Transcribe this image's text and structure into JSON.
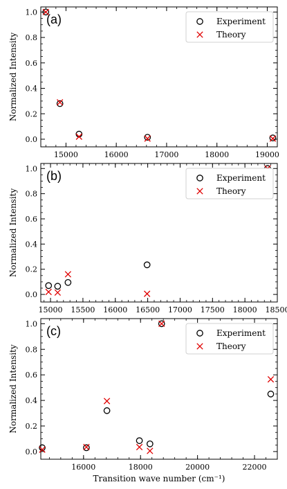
{
  "chart_data": [
    {
      "type": "scatter",
      "panel_label": "(a)",
      "ylabel": "Normalized Intensity",
      "xlabel": "",
      "xlim": [
        14500,
        19200
      ],
      "ylim": [
        -0.06,
        1.04
      ],
      "x_ticks": [
        15000,
        16000,
        17000,
        18000,
        19000
      ],
      "y_ticks": [
        0.0,
        0.2,
        0.4,
        0.6,
        0.8,
        1.0
      ],
      "legend": {
        "placement": "top-right",
        "entries": [
          "Experiment",
          "Theory"
        ]
      },
      "grid": false,
      "series": [
        {
          "name": "Experiment",
          "marker": "circle",
          "color": "#000000",
          "x": [
            14600,
            14880,
            15260,
            16620,
            19110
          ],
          "y": [
            1.0,
            0.28,
            0.04,
            0.015,
            0.01
          ]
        },
        {
          "name": "Theory",
          "marker": "x",
          "color": "#e00000",
          "x": [
            14600,
            14880,
            15260,
            16620,
            19110
          ],
          "y": [
            1.0,
            0.29,
            0.02,
            0.005,
            0.005
          ]
        }
      ]
    },
    {
      "type": "scatter",
      "panel_label": "(b)",
      "ylabel": "Normalized Intensity",
      "xlabel": "",
      "xlim": [
        14850,
        18500
      ],
      "ylim": [
        -0.06,
        1.04
      ],
      "x_ticks": [
        15000,
        15500,
        16000,
        16500,
        17000,
        17500,
        18000,
        18500
      ],
      "y_ticks": [
        0.0,
        0.2,
        0.4,
        0.6,
        0.8,
        1.0
      ],
      "legend": {
        "placement": "top-right",
        "entries": [
          "Experiment",
          "Theory"
        ]
      },
      "grid": false,
      "series": [
        {
          "name": "Experiment",
          "marker": "circle",
          "color": "#000000",
          "x": [
            14970,
            15110,
            15270,
            16490,
            18350
          ],
          "y": [
            0.07,
            0.065,
            0.095,
            0.235,
            1.0
          ]
        },
        {
          "name": "Theory",
          "marker": "x",
          "color": "#e00000",
          "x": [
            14970,
            15110,
            15270,
            16490,
            18350
          ],
          "y": [
            0.02,
            0.015,
            0.16,
            0.005,
            1.0
          ]
        }
      ]
    },
    {
      "type": "scatter",
      "panel_label": "(c)",
      "ylabel": "Normalized Intensity",
      "xlabel": "Transition wave number (cm⁻¹)",
      "xlim": [
        14500,
        22800
      ],
      "ylim": [
        -0.06,
        1.04
      ],
      "x_ticks": [
        16000,
        18000,
        20000,
        22000
      ],
      "y_ticks": [
        0.0,
        0.2,
        0.4,
        0.6,
        0.8,
        1.0
      ],
      "legend": {
        "placement": "top-right",
        "entries": [
          "Experiment",
          "Theory"
        ]
      },
      "grid": false,
      "series": [
        {
          "name": "Experiment",
          "marker": "circle",
          "color": "#000000",
          "x": [
            14550,
            16100,
            16820,
            17960,
            18330,
            18740,
            22570
          ],
          "y": [
            0.03,
            0.03,
            0.32,
            0.085,
            0.06,
            1.0,
            0.45
          ]
        },
        {
          "name": "Theory",
          "marker": "x",
          "color": "#e00000",
          "x": [
            14550,
            16100,
            16820,
            17960,
            18330,
            18740,
            22570
          ],
          "y": [
            0.015,
            0.035,
            0.395,
            0.035,
            0.005,
            1.0,
            0.565
          ]
        }
      ]
    }
  ]
}
